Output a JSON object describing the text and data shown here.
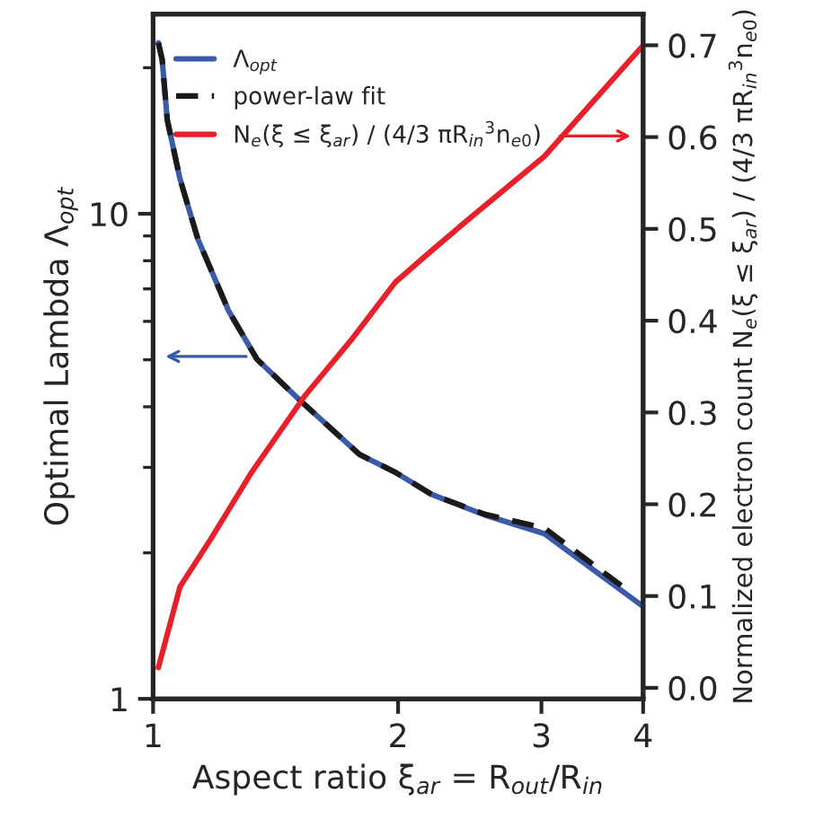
{
  "chart_data": {
    "type": "line",
    "xlabel": "Aspect ratio ξ$_{ar}$ = R$_{out}$/R$_{in}$",
    "ylabel": "Optimal Lambda Λ$_{opt}$",
    "y2label": "Normalized electron count N$_{e}$(ξ ≤ ξ$_{ar}$) / (4/3 πR$_{in}$$^{3}$n$_{e0}$)",
    "log": "xy",
    "xlim": [
      1,
      4
    ],
    "xticks": [
      1,
      2,
      3,
      4
    ],
    "ylim": [
      1,
      25.8
    ],
    "yticks": [
      1,
      10,
      {
        "value": 2,
        "label": null
      },
      {
        "value": 3,
        "label": null
      },
      {
        "value": 4,
        "label": null
      },
      {
        "value": 5,
        "label": null
      },
      {
        "value": 6,
        "label": null
      },
      {
        "value": 7,
        "label": null
      },
      {
        "value": 8,
        "label": null
      },
      {
        "value": 9,
        "label": null
      },
      {
        "value": 20,
        "label": null
      }
    ],
    "y2lim": [
      -0.012,
      0.734
    ],
    "y2ticks": [
      {
        "value": 0,
        "label": "0.0"
      },
      0.1,
      0.2,
      0.3,
      0.4,
      0.5,
      0.6,
      0.7
    ],
    "legend": "top",
    "grid": false,
    "series": [
      {
        "name": "Λ$_{opt}$",
        "color": "#3b5ba9",
        "line_style": "solid",
        "x": [
          1.015,
          1.026,
          1.041,
          1.079,
          1.135,
          1.238,
          1.342,
          1.516,
          1.793,
          1.985,
          2.197,
          2.56,
          3.025,
          4.0
        ],
        "values": [
          22.5,
          20.8,
          15.6,
          11.8,
          8.87,
          6.31,
          5.01,
          4.12,
          3.19,
          2.93,
          2.64,
          2.39,
          2.19,
          1.55
        ]
      },
      {
        "name": "power-law fit",
        "color": "#1a1a1a",
        "line_style": "dashed",
        "x": [
          1.015,
          1.026,
          1.041,
          1.079,
          1.135,
          1.238,
          1.342,
          1.516,
          1.793,
          1.985,
          2.197,
          2.56,
          3.025,
          3.78
        ],
        "values": [
          22.5,
          20.8,
          15.6,
          11.8,
          8.87,
          6.31,
          5.01,
          4.12,
          3.19,
          2.93,
          2.64,
          2.4,
          2.25,
          1.7
        ]
      },
      {
        "name": "N$_{e}$(ξ ≤ ξ$_{ar}$) / (4/3 πR$_{in}$$^{3}$n$_{e0}$)",
        "color": "#e8202a",
        "line_style": "solid",
        "axis": "y2",
        "x": [
          1.015,
          1.079,
          1.177,
          1.322,
          1.539,
          1.748,
          1.985,
          2.197,
          2.43,
          3.025,
          4.0
        ],
        "values": [
          0.022,
          0.11,
          0.162,
          0.235,
          0.319,
          0.378,
          0.442,
          0.476,
          0.509,
          0.579,
          0.7
        ]
      }
    ]
  }
}
